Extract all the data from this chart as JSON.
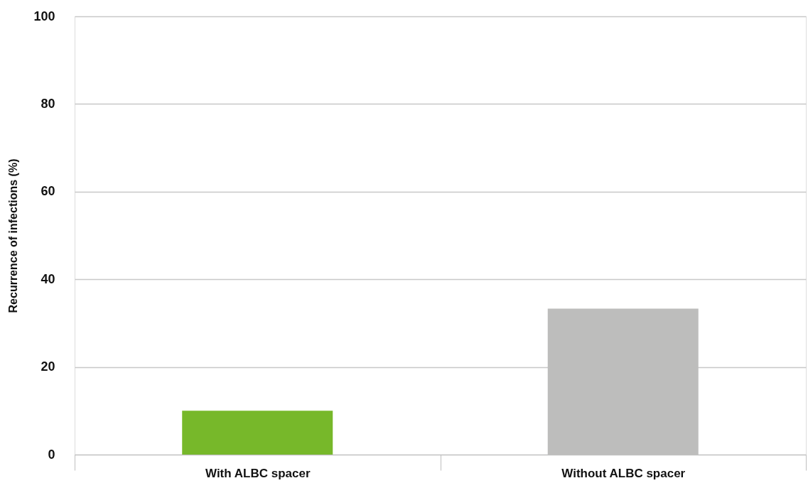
{
  "chart_data": {
    "type": "bar",
    "ylabel": "Recurrence of infections (%)",
    "categories": [
      "With ALBC spacer",
      "Without ALBC spacer"
    ],
    "values": [
      10,
      33.3
    ],
    "colors": [
      "#77b82a",
      "#bdbdbc"
    ],
    "ylim": [
      0,
      100
    ],
    "yticks": [
      0,
      20,
      40,
      60,
      80,
      100
    ],
    "grid": "y"
  }
}
